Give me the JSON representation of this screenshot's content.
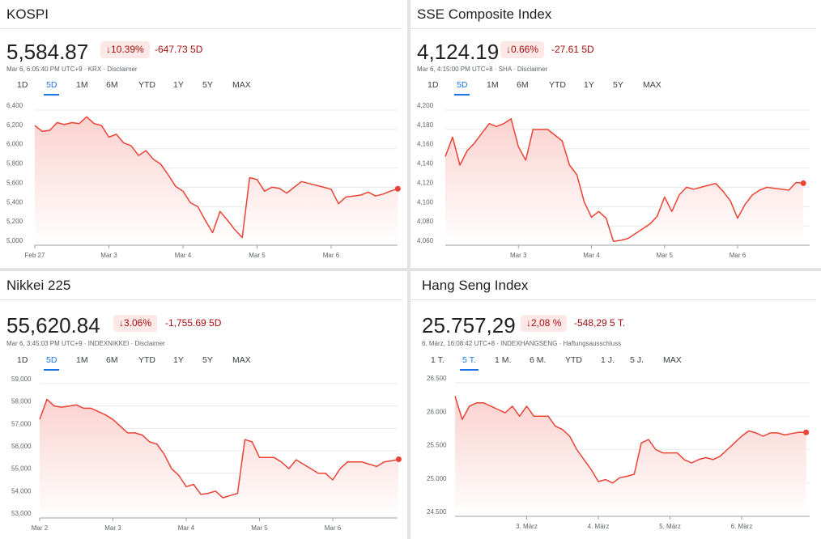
{
  "panels": [
    {
      "title": "KOSPI",
      "price": "5,584.87",
      "change_pct": "10.39%",
      "change_abs": "-647.73 5D",
      "meta": "Mar 6, 6:05:40 PM UTC+9 · KRX · Disclaimer",
      "tabs": [
        "1D",
        "5D",
        "1M",
        "6M",
        "YTD",
        "1Y",
        "5Y",
        "MAX"
      ],
      "active_tab": "5D"
    },
    {
      "title": "SSE Composite Index",
      "price": "4,124.19",
      "change_pct": "0.66%",
      "change_abs": "-27.61 5D",
      "meta": "Mar 6, 4:15:00 PM UTC+8 · SHA · Disclaimer",
      "tabs": [
        "1D",
        "5D",
        "1M",
        "6M",
        "YTD",
        "1Y",
        "5Y",
        "MAX"
      ],
      "active_tab": "5D"
    },
    {
      "title": "Nikkei 225",
      "price": "55,620.84",
      "change_pct": "3.06%",
      "change_abs": "-1,755.69 5D",
      "meta": "Mar 6, 3:45:03 PM UTC+9 · INDEXNIKKEI · Disclaimer",
      "tabs": [
        "1D",
        "5D",
        "1M",
        "6M",
        "YTD",
        "1Y",
        "5Y",
        "MAX"
      ],
      "active_tab": "5D"
    },
    {
      "title": "Hang Seng Index",
      "price": "25.757,29",
      "change_pct": "2,08 %",
      "change_abs": "-548,29 5 T.",
      "meta": "6. März, 16:08:42 UTC+8 · INDEXHANGSENG · Haftungsausschluss",
      "tabs": [
        "1 T.",
        "5 T.",
        "1 M.",
        "6 M.",
        "YTD",
        "1 J.",
        "5 J.",
        "MAX"
      ],
      "active_tab": "5 T."
    }
  ],
  "colors": {
    "line": "#ea4335",
    "fill_top": "#fad2cf",
    "badge_bg": "#fce8e6",
    "negative": "#a50e0e",
    "active_tab": "#1a73e8"
  },
  "chart_data": [
    {
      "type": "area",
      "title": "KOSPI",
      "ylim": [
        5000,
        6400
      ],
      "yticks": [
        "5,000",
        "5,200",
        "5,400",
        "5,600",
        "5,800",
        "6,000",
        "6,200",
        "6,400"
      ],
      "ytick_values": [
        5000,
        5200,
        5400,
        5600,
        5800,
        6000,
        6200,
        6400
      ],
      "xlim": [
        0,
        5
      ],
      "xticks": [
        {
          "label": "Feb 27",
          "x": 0
        },
        {
          "label": "Mar 3",
          "x": 1
        },
        {
          "label": "Mar 4",
          "x": 2
        },
        {
          "label": "Mar 5",
          "x": 3
        },
        {
          "label": "Mar 6",
          "x": 4
        }
      ],
      "grid": true,
      "x": [
        0,
        0.1,
        0.2,
        0.3,
        0.4,
        0.5,
        0.6,
        0.7,
        0.8,
        0.9,
        1.0,
        1.1,
        1.2,
        1.3,
        1.4,
        1.5,
        1.6,
        1.7,
        1.8,
        1.9,
        2.0,
        2.1,
        2.2,
        2.3,
        2.4,
        2.5,
        2.6,
        2.7,
        2.8,
        2.9,
        3.0,
        3.1,
        3.2,
        3.3,
        3.4,
        3.5,
        3.6,
        3.7,
        3.8,
        3.9,
        4.0,
        4.1,
        4.2,
        4.3,
        4.4,
        4.5,
        4.6,
        4.7,
        4.8,
        4.9
      ],
      "values": [
        6240,
        6180,
        6190,
        6270,
        6250,
        6270,
        6260,
        6330,
        6260,
        6240,
        6120,
        6150,
        6060,
        6030,
        5930,
        5980,
        5890,
        5840,
        5730,
        5610,
        5560,
        5440,
        5400,
        5260,
        5130,
        5350,
        5260,
        5160,
        5080,
        5700,
        5680,
        5560,
        5600,
        5590,
        5540,
        5600,
        5660,
        5640,
        5620,
        5600,
        5580,
        5430,
        5500,
        5510,
        5520,
        5550,
        5510,
        5530,
        5560,
        5584.87
      ]
    },
    {
      "type": "area",
      "title": "SSE Composite Index",
      "ylim": [
        4060,
        4200
      ],
      "yticks": [
        "4,060",
        "4,080",
        "4,100",
        "4,120",
        "4,140",
        "4,160",
        "4,180",
        "4,200"
      ],
      "ytick_values": [
        4060,
        4080,
        4100,
        4120,
        4140,
        4160,
        4180,
        4200
      ],
      "xlim": [
        0,
        5
      ],
      "xticks": [
        {
          "label": "Mar 3",
          "x": 1
        },
        {
          "label": "Mar 4",
          "x": 2
        },
        {
          "label": "Mar 5",
          "x": 3
        },
        {
          "label": "Mar 6",
          "x": 4
        }
      ],
      "grid": true,
      "x": [
        0,
        0.1,
        0.2,
        0.3,
        0.4,
        0.5,
        0.6,
        0.7,
        0.8,
        0.9,
        1.0,
        1.1,
        1.2,
        1.3,
        1.4,
        1.5,
        1.6,
        1.7,
        1.8,
        1.9,
        2.0,
        2.1,
        2.2,
        2.3,
        2.4,
        2.5,
        2.6,
        2.7,
        2.8,
        2.9,
        3.0,
        3.1,
        3.2,
        3.3,
        3.4,
        3.5,
        3.6,
        3.7,
        3.8,
        3.9,
        4.0,
        4.1,
        4.2,
        4.3,
        4.4,
        4.5,
        4.6,
        4.7,
        4.8,
        4.9
      ],
      "values": [
        4152,
        4172,
        4143,
        4158,
        4166,
        4176,
        4186,
        4183,
        4186,
        4191,
        4162,
        4148,
        4180,
        4180,
        4180,
        4174,
        4168,
        4143,
        4133,
        4105,
        4089,
        4095,
        4088,
        4064,
        4065,
        4067,
        4072,
        4077,
        4082,
        4090,
        4110,
        4095,
        4112,
        4120,
        4118,
        4120,
        4122,
        4124,
        4116,
        4106,
        4088,
        4102,
        4112,
        4117,
        4120,
        4119,
        4118,
        4117,
        4125,
        4124.19
      ]
    },
    {
      "type": "area",
      "title": "Nikkei 225",
      "ylim": [
        53000,
        59000
      ],
      "yticks": [
        "53,000",
        "54,000",
        "55,000",
        "56,000",
        "57,000",
        "58,000",
        "59,000"
      ],
      "ytick_values": [
        53000,
        54000,
        55000,
        56000,
        57000,
        58000,
        59000
      ],
      "xlim": [
        0,
        5
      ],
      "xticks": [
        {
          "label": "Mar 2",
          "x": 0
        },
        {
          "label": "Mar 3",
          "x": 1
        },
        {
          "label": "Mar 4",
          "x": 2
        },
        {
          "label": "Mar 5",
          "x": 3
        },
        {
          "label": "Mar 6",
          "x": 4
        }
      ],
      "grid": true,
      "x": [
        0,
        0.1,
        0.2,
        0.3,
        0.4,
        0.5,
        0.6,
        0.7,
        0.8,
        0.9,
        1.0,
        1.1,
        1.2,
        1.3,
        1.4,
        1.5,
        1.6,
        1.7,
        1.8,
        1.9,
        2.0,
        2.1,
        2.2,
        2.3,
        2.4,
        2.5,
        2.6,
        2.7,
        2.8,
        2.9,
        3.0,
        3.1,
        3.2,
        3.3,
        3.4,
        3.5,
        3.6,
        3.7,
        3.8,
        3.9,
        4.0,
        4.1,
        4.2,
        4.3,
        4.4,
        4.5,
        4.6,
        4.7,
        4.8,
        4.9
      ],
      "values": [
        57400,
        58300,
        58000,
        57950,
        58000,
        58050,
        57900,
        57900,
        57750,
        57600,
        57400,
        57100,
        56800,
        56800,
        56700,
        56400,
        56300,
        55850,
        55200,
        54900,
        54400,
        54500,
        54050,
        54100,
        54200,
        53900,
        54000,
        54100,
        56500,
        56400,
        55700,
        55700,
        55700,
        55500,
        55200,
        55600,
        55400,
        55200,
        55000,
        55000,
        54700,
        55200,
        55500,
        55500,
        55500,
        55400,
        55300,
        55500,
        55550,
        55620.84
      ]
    },
    {
      "type": "area",
      "title": "Hang Seng Index",
      "ylim": [
        24500,
        26500
      ],
      "yticks": [
        "24.500",
        "25.000",
        "25.500",
        "26.000",
        "26.500"
      ],
      "ytick_values": [
        24500,
        25000,
        25500,
        26000,
        26500
      ],
      "xlim": [
        0,
        5
      ],
      "xticks": [
        {
          "label": "3. März",
          "x": 1
        },
        {
          "label": "4. März",
          "x": 2
        },
        {
          "label": "5. März",
          "x": 3
        },
        {
          "label": "6. März",
          "x": 4
        }
      ],
      "grid": true,
      "x": [
        0,
        0.1,
        0.2,
        0.3,
        0.4,
        0.5,
        0.6,
        0.7,
        0.8,
        0.9,
        1.0,
        1.1,
        1.2,
        1.3,
        1.4,
        1.5,
        1.6,
        1.7,
        1.8,
        1.9,
        2.0,
        2.1,
        2.2,
        2.3,
        2.4,
        2.5,
        2.6,
        2.7,
        2.8,
        2.9,
        3.0,
        3.1,
        3.2,
        3.3,
        3.4,
        3.5,
        3.6,
        3.7,
        3.8,
        3.9,
        4.0,
        4.1,
        4.2,
        4.3,
        4.4,
        4.5,
        4.6,
        4.7,
        4.8,
        4.9
      ],
      "values": [
        26300,
        25950,
        26150,
        26200,
        26200,
        26150,
        26100,
        26050,
        26150,
        26000,
        26150,
        26000,
        26000,
        26000,
        25850,
        25800,
        25700,
        25500,
        25350,
        25200,
        25020,
        25050,
        25000,
        25080,
        25100,
        25130,
        25600,
        25650,
        25500,
        25450,
        25450,
        25450,
        25350,
        25300,
        25350,
        25380,
        25350,
        25400,
        25500,
        25600,
        25700,
        25780,
        25750,
        25700,
        25750,
        25750,
        25720,
        25740,
        25760,
        25757.29
      ]
    }
  ]
}
